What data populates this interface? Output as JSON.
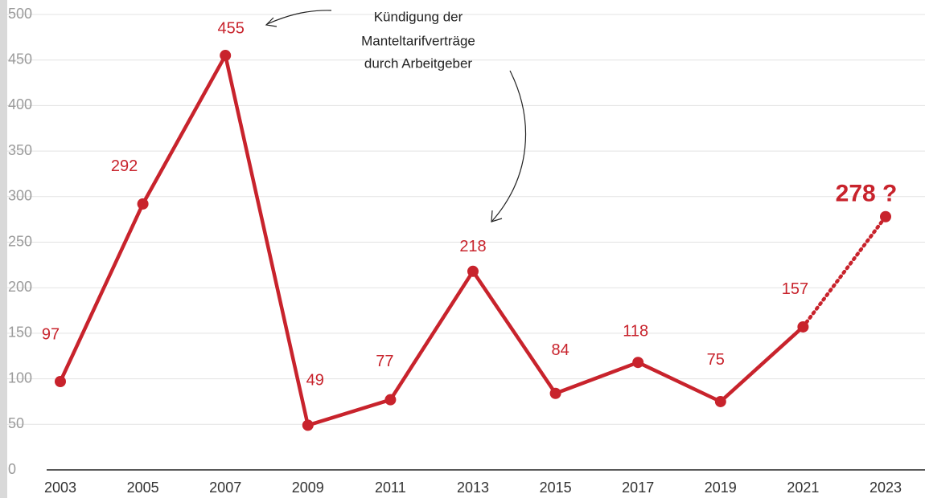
{
  "chart_data": {
    "type": "line",
    "x": [
      2003,
      2005,
      2007,
      2009,
      2011,
      2013,
      2015,
      2017,
      2019,
      2021,
      2023
    ],
    "series": [
      {
        "color": "#c8232c",
        "values": [
          97,
          292,
          455,
          49,
          77,
          218,
          84,
          118,
          75,
          157,
          278
        ],
        "value_labels": [
          "97",
          "292",
          "455",
          "49",
          "77",
          "218",
          "84",
          "118",
          "75",
          "157",
          "278 ?"
        ]
      }
    ],
    "dotted_last_segment": true,
    "xlim": [
      2003,
      2023
    ],
    "xticks": [
      2003,
      2005,
      2007,
      2009,
      2011,
      2013,
      2015,
      2017,
      2019,
      2021,
      2023
    ],
    "ylim": [
      0,
      500
    ],
    "yticks": [
      0,
      50,
      100,
      150,
      200,
      250,
      300,
      350,
      400,
      450,
      500
    ],
    "grid": true,
    "annotation": [
      "Kündigung der",
      "Manteltarifverträge",
      "durch Arbeitgeber"
    ]
  }
}
